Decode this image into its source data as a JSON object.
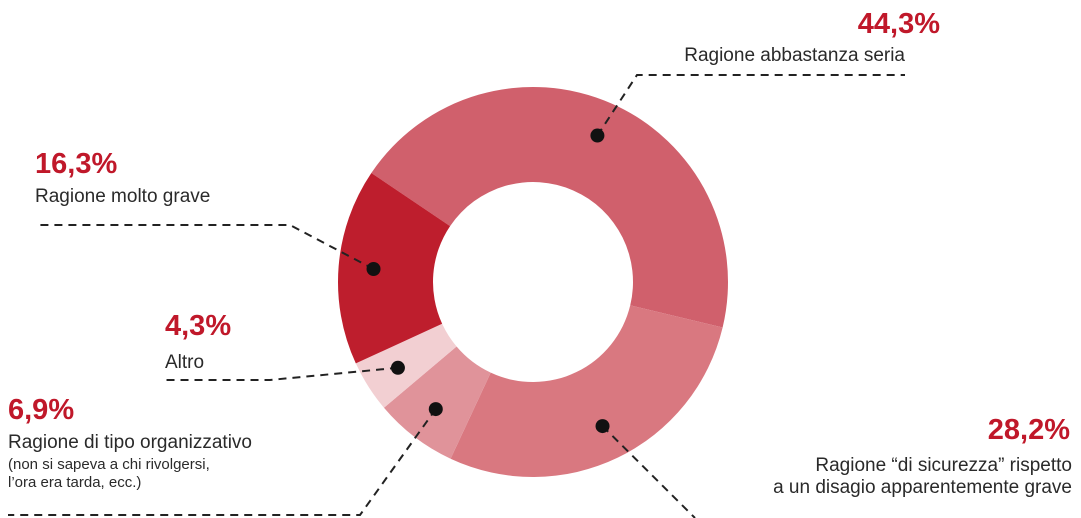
{
  "chart_data": {
    "type": "donut",
    "categories": [
      "Ragione abbastanza seria",
      "Ragione “di sicurezza” rispetto\na un disagio apparentemente grave",
      "Ragione di tipo organizzativo",
      "Altro",
      "Ragione molto grave"
    ],
    "values": [
      44.3,
      28.2,
      6.9,
      4.3,
      16.3
    ],
    "value_labels": [
      "44,3%",
      "28,2%",
      "6,9%",
      "4,3%",
      "16,3%"
    ],
    "colors": [
      "#d0606c",
      "#d97880",
      "#e0939a",
      "#f2cfd2",
      "#be1e2d"
    ],
    "annotations": [
      "(non si sapeva a chi rivolgersi,",
      "l’ora era tarda, ecc.)"
    ]
  }
}
